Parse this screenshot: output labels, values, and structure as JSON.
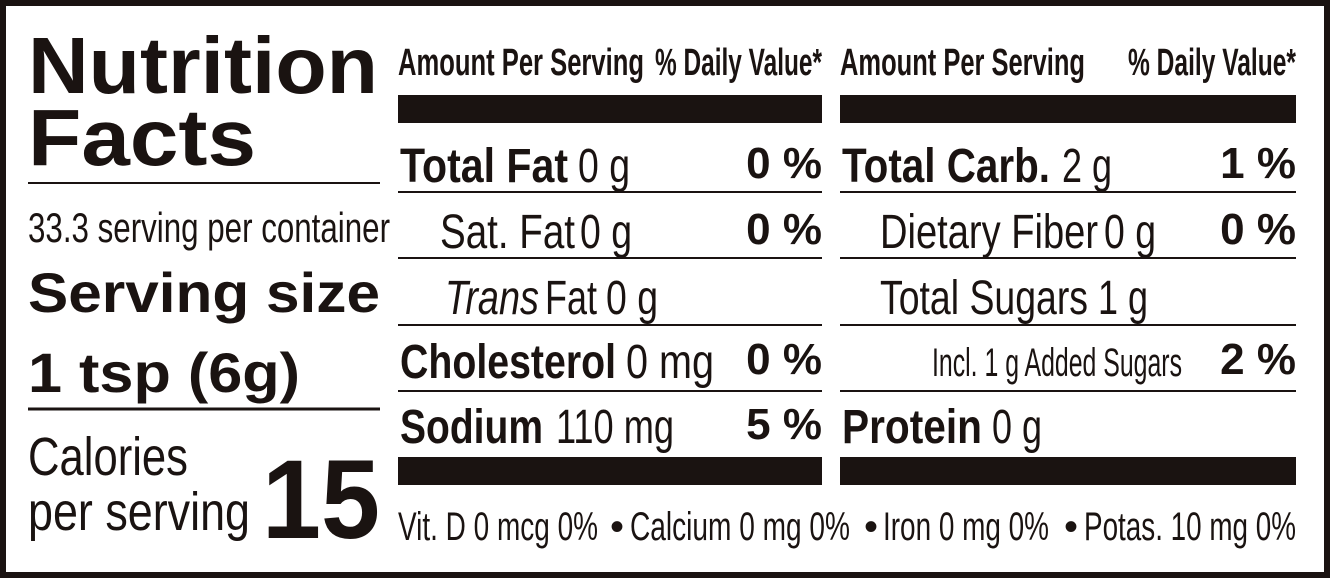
{
  "title": [
    "Nutrition",
    "Facts"
  ],
  "servings_per_container": "33.3 serving per container",
  "serving_size_label": "Serving size",
  "serving_size": "1 tsp (6g)",
  "calories_label": [
    "Calories",
    "per serving"
  ],
  "calories": "15",
  "columns": [
    {
      "header_amount": "Amount Per Serving",
      "header_dv": "% Daily Value*",
      "rows": [
        {
          "name": "Total Fat",
          "amount": "0 g",
          "dv": "0 %"
        },
        {
          "name": "Sat. Fat",
          "amount": "0 g",
          "dv": "0 %"
        },
        {
          "name_italic": "Trans",
          "name": "Fat",
          "amount": "0 g"
        },
        {
          "name": "Cholesterol",
          "amount": "0 mg",
          "dv": "0 %"
        },
        {
          "name": "Sodium",
          "amount": "110 mg",
          "dv": "5 %"
        }
      ]
    },
    {
      "header_amount": "Amount Per Serving",
      "header_dv": "% Daily Value*",
      "rows": [
        {
          "name": "Total Carb.",
          "amount": "2 g",
          "dv": "1 %"
        },
        {
          "name": "Dietary Fiber",
          "amount": "0 g",
          "dv": "0 %"
        },
        {
          "name": "Total Sugars",
          "amount": "1 g"
        },
        {
          "name": "Incl. 1 g Added Sugars",
          "dv": "2 %"
        },
        {
          "name": "Protein",
          "amount": "0 g"
        }
      ]
    }
  ],
  "footer": {
    "separator": "•",
    "items": [
      "Vit. D 0 mcg 0%",
      "Calcium 0 mg 0%",
      "Iron 0 mg 0%",
      "Potas. 10 mg 0%"
    ]
  }
}
